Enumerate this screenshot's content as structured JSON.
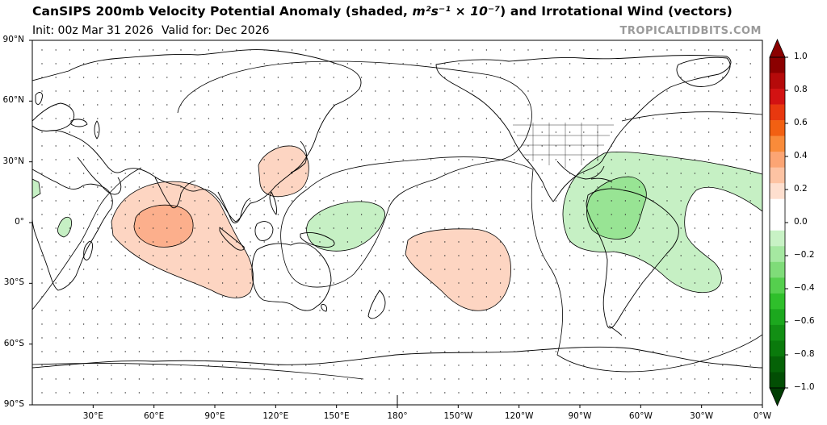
{
  "header": {
    "title_main": "CanSIPS 200mb Velocity Potential Anomaly (shaded, ",
    "title_units": "m²s⁻¹ × 10⁻⁷",
    "title_tail": ") and Irrotational Wind (vectors)",
    "init": "Init: 00z Mar 31 2026",
    "valid": "Valid for: Dec 2026",
    "watermark": "TROPICALTIDBITS.COM"
  },
  "map": {
    "lat_labels": [
      "90°N",
      "60°N",
      "30°N",
      "0°",
      "30°S",
      "60°S",
      "90°S"
    ],
    "lon_labels": [
      "30°E",
      "60°E",
      "90°E",
      "120°E",
      "150°E",
      "180°",
      "150°W",
      "120°W",
      "90°W",
      "60°W",
      "30°W",
      "0°W"
    ],
    "colors": {
      "positive_light": "#fdd5c2",
      "positive_mid": "#fcaf8c",
      "negative_light": "#c6f0c4",
      "negative_mid": "#98e494",
      "coast": "#000000"
    }
  },
  "colorbar": {
    "labels": [
      "1.0",
      "0.8",
      "0.6",
      "0.4",
      "0.2",
      "0.0",
      "−0.2",
      "−0.4",
      "−0.6",
      "−0.8",
      "−1.0"
    ],
    "colors_top_to_bottom": [
      "#8b0000",
      "#b50a0a",
      "#d31212",
      "#e8380f",
      "#f26012",
      "#f98b3a",
      "#fca574",
      "#fdc3a3",
      "#fedfcf",
      "#ffffff",
      "#ffffff",
      "#c8f2c5",
      "#a5e8a1",
      "#7fdc79",
      "#55cf4e",
      "#2fbf2b",
      "#1ca81e",
      "#128f14",
      "#0a7a0c",
      "#056207",
      "#024e04"
    ],
    "top_arrow_color": "#8b0000",
    "bottom_arrow_color": "#013d03"
  }
}
